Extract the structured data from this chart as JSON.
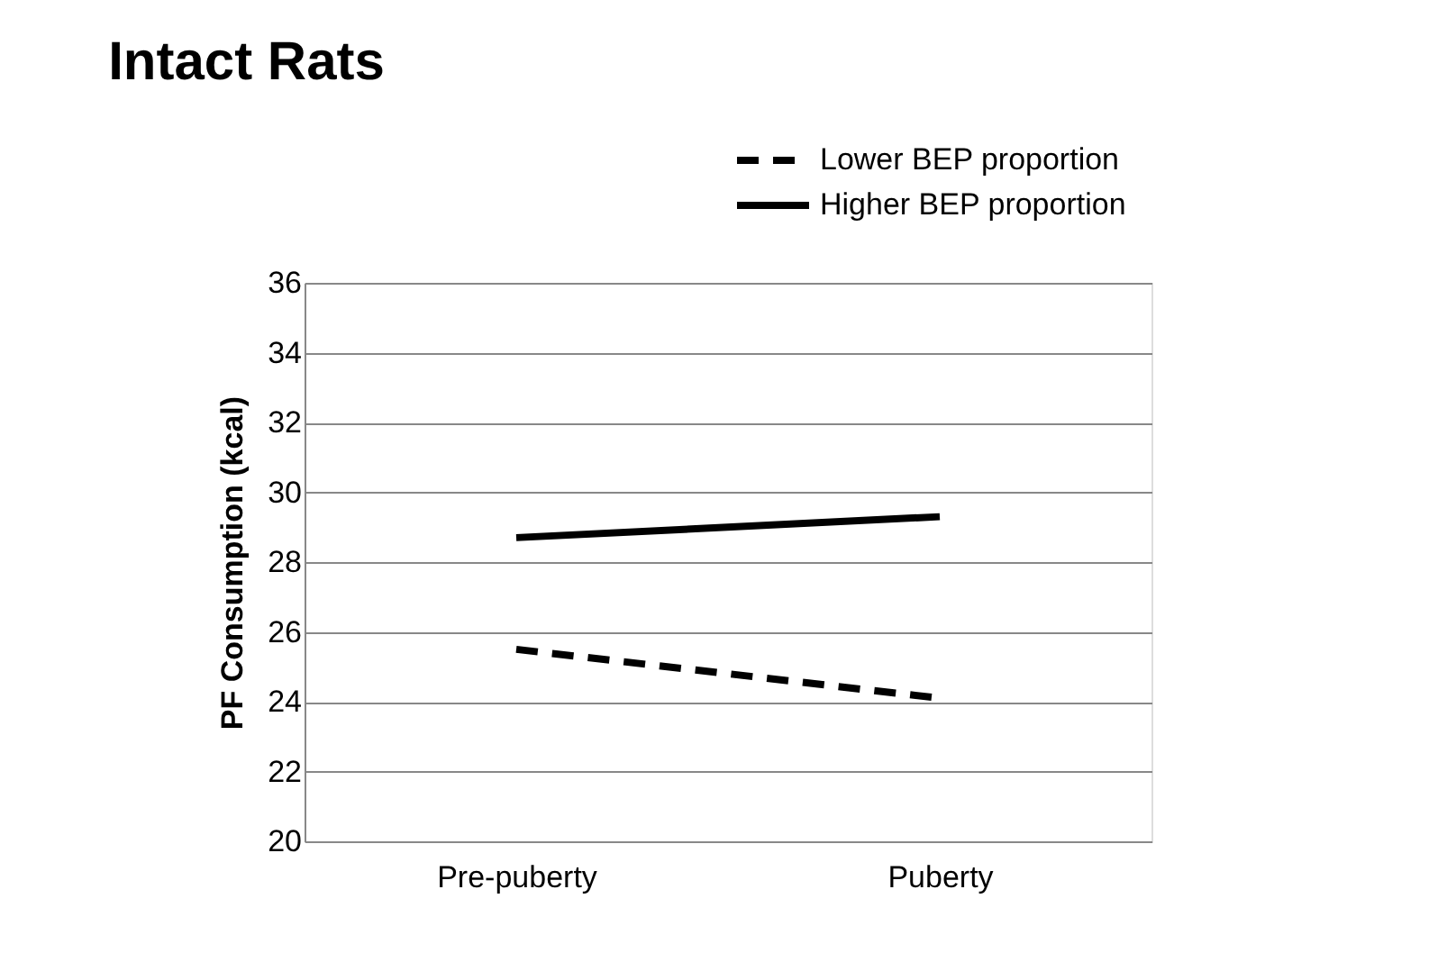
{
  "chart_data": {
    "type": "line",
    "title": "Intact Rats",
    "ylabel": "PF Consumption (kcal)",
    "categories": [
      "Pre-puberty",
      "Puberty"
    ],
    "series": [
      {
        "name": "Lower BEP proportion",
        "color": "#000000",
        "line_style": "dashed",
        "values": [
          25.5,
          24.1
        ]
      },
      {
        "name": "Higher BEP proportion",
        "color": "#000000",
        "line_style": "solid",
        "values": [
          28.7,
          29.3
        ]
      }
    ],
    "ylim": [
      20,
      36
    ],
    "yticks": [
      20,
      22,
      24,
      26,
      28,
      30,
      32,
      34,
      36
    ],
    "grid": "y",
    "legend": "top right",
    "marker": "none"
  }
}
